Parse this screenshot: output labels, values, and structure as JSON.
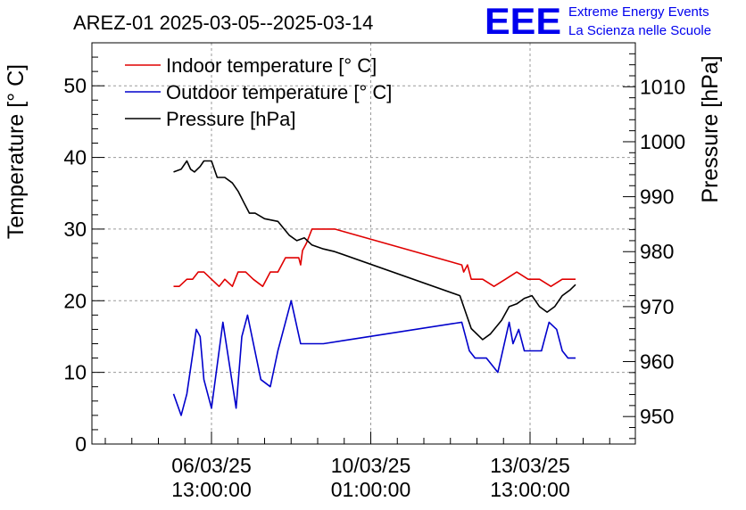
{
  "chart_data": {
    "type": "line",
    "title": "AREZ-01 2025-03-05--2025-03-14",
    "ylabel": "Temperature [° C]",
    "y2label": "Pressure [hPa]",
    "ylim": [
      0,
      56
    ],
    "y2lim": [
      945,
      1018
    ],
    "yticks": [
      "0",
      "10",
      "20",
      "30",
      "40",
      "50"
    ],
    "y2ticks": [
      "950",
      "960",
      "970",
      "980",
      "990",
      "1000",
      "1010"
    ],
    "xticks": [
      {
        "date": "06/03/25",
        "time": "13:00:00"
      },
      {
        "date": "10/03/25",
        "time": "01:00:00"
      },
      {
        "date": "13/03/25",
        "time": "13:00:00"
      }
    ],
    "grid": true,
    "legend_position": "top-left",
    "series": [
      {
        "name": "Indoor temperature [° C]",
        "color": "#e00000",
        "axis": "left",
        "x": [
          "2025-03-05 17:00",
          "2025-03-05 20:00",
          "2025-03-06 00:00",
          "2025-03-06 03:00",
          "2025-03-06 06:00",
          "2025-03-06 09:00",
          "2025-03-06 13:00",
          "2025-03-06 17:00",
          "2025-03-06 20:00",
          "2025-03-07 00:00",
          "2025-03-07 03:00",
          "2025-03-07 07:00",
          "2025-03-07 11:00",
          "2025-03-07 16:00",
          "2025-03-07 20:00",
          "2025-03-08 00:00",
          "2025-03-08 04:00",
          "2025-03-08 08:00",
          "2025-03-08 11:00",
          "2025-03-08 12:00",
          "2025-03-08 13:00",
          "2025-03-08 15:00",
          "2025-03-08 18:00",
          "2025-03-09 00:00",
          "2025-03-09 06:00",
          "2025-03-12 01:00",
          "2025-03-12 02:00",
          "2025-03-12 04:00",
          "2025-03-12 06:00",
          "2025-03-12 12:00",
          "2025-03-12 18:00",
          "2025-03-13 00:00",
          "2025-03-13 06:00",
          "2025-03-13 12:00",
          "2025-03-13 18:00",
          "2025-03-14 00:00",
          "2025-03-14 06:00",
          "2025-03-14 13:00"
        ],
        "y": [
          22,
          22,
          23,
          23,
          24,
          24,
          23,
          22,
          23,
          22,
          24,
          24,
          23,
          22,
          24,
          24,
          26,
          26,
          26,
          25,
          27,
          28,
          30,
          30,
          30,
          25,
          24,
          25,
          23,
          23,
          22,
          23,
          24,
          23,
          23,
          22,
          23,
          23
        ]
      },
      {
        "name": "Outdoor temperature [° C]",
        "color": "#0000cc",
        "axis": "left",
        "x": [
          "2025-03-05 17:00",
          "2025-03-05 21:00",
          "2025-03-06 00:00",
          "2025-03-06 05:00",
          "2025-03-06 07:00",
          "2025-03-06 09:00",
          "2025-03-06 13:00",
          "2025-03-06 19:00",
          "2025-03-07 02:00",
          "2025-03-07 05:00",
          "2025-03-07 08:00",
          "2025-03-07 15:00",
          "2025-03-07 20:00",
          "2025-03-08 00:00",
          "2025-03-08 07:00",
          "2025-03-08 12:00",
          "2025-03-08 18:00",
          "2025-03-09 00:00",
          "2025-03-12 01:00",
          "2025-03-12 05:00",
          "2025-03-12 08:00",
          "2025-03-12 14:00",
          "2025-03-12 20:00",
          "2025-03-13 02:00",
          "2025-03-13 04:00",
          "2025-03-13 07:00",
          "2025-03-13 10:00",
          "2025-03-13 12:00",
          "2025-03-13 15:00",
          "2025-03-13 19:00",
          "2025-03-13 23:00",
          "2025-03-14 03:00",
          "2025-03-14 06:00",
          "2025-03-14 09:00",
          "2025-03-14 13:00"
        ],
        "y": [
          7,
          4,
          7,
          16,
          15,
          9,
          5,
          17,
          5,
          15,
          18,
          9,
          8,
          13,
          20,
          14,
          14,
          14,
          17,
          13,
          12,
          12,
          10,
          17,
          14,
          16,
          13,
          13,
          13,
          13,
          17,
          16,
          13,
          12,
          12
        ]
      },
      {
        "name": "Pressure [hPa]",
        "color": "#000000",
        "axis": "right",
        "x": [
          "2025-03-05 17:00",
          "2025-03-05 21:00",
          "2025-03-06 00:00",
          "2025-03-06 02:00",
          "2025-03-06 04:00",
          "2025-03-06 07:00",
          "2025-03-06 09:00",
          "2025-03-06 13:00",
          "2025-03-06 16:00",
          "2025-03-06 20:00",
          "2025-03-07 00:00",
          "2025-03-07 03:00",
          "2025-03-07 06:00",
          "2025-03-07 09:00",
          "2025-03-07 12:00",
          "2025-03-07 17:00",
          "2025-03-08 00:00",
          "2025-03-08 06:00",
          "2025-03-08 10:00",
          "2025-03-08 14:00",
          "2025-03-08 18:00",
          "2025-03-09 00:00",
          "2025-03-09 06:00",
          "2025-03-12 00:00",
          "2025-03-12 06:00",
          "2025-03-12 12:00",
          "2025-03-12 16:00",
          "2025-03-12 22:00",
          "2025-03-13 02:00",
          "2025-03-13 06:00",
          "2025-03-13 10:00",
          "2025-03-13 14:00",
          "2025-03-13 18:00",
          "2025-03-13 22:00",
          "2025-03-14 02:00",
          "2025-03-14 06:00",
          "2025-03-14 10:00",
          "2025-03-14 13:00"
        ],
        "y": [
          994.5,
          995,
          996.5,
          995,
          994.5,
          995.5,
          996.5,
          996.5,
          993.5,
          993.5,
          992.5,
          991,
          989,
          987,
          987,
          986,
          985.5,
          983,
          982,
          982.5,
          981.2,
          980.5,
          980,
          972,
          966,
          964,
          965,
          967.5,
          970,
          970.5,
          971.5,
          972,
          970,
          969,
          970,
          972,
          973,
          974
        ]
      }
    ]
  },
  "logo": {
    "mark": "EEE",
    "line1": "Extreme Energy Events",
    "line2": "La Scienza nelle Scuole",
    "color": "#0000ee"
  }
}
